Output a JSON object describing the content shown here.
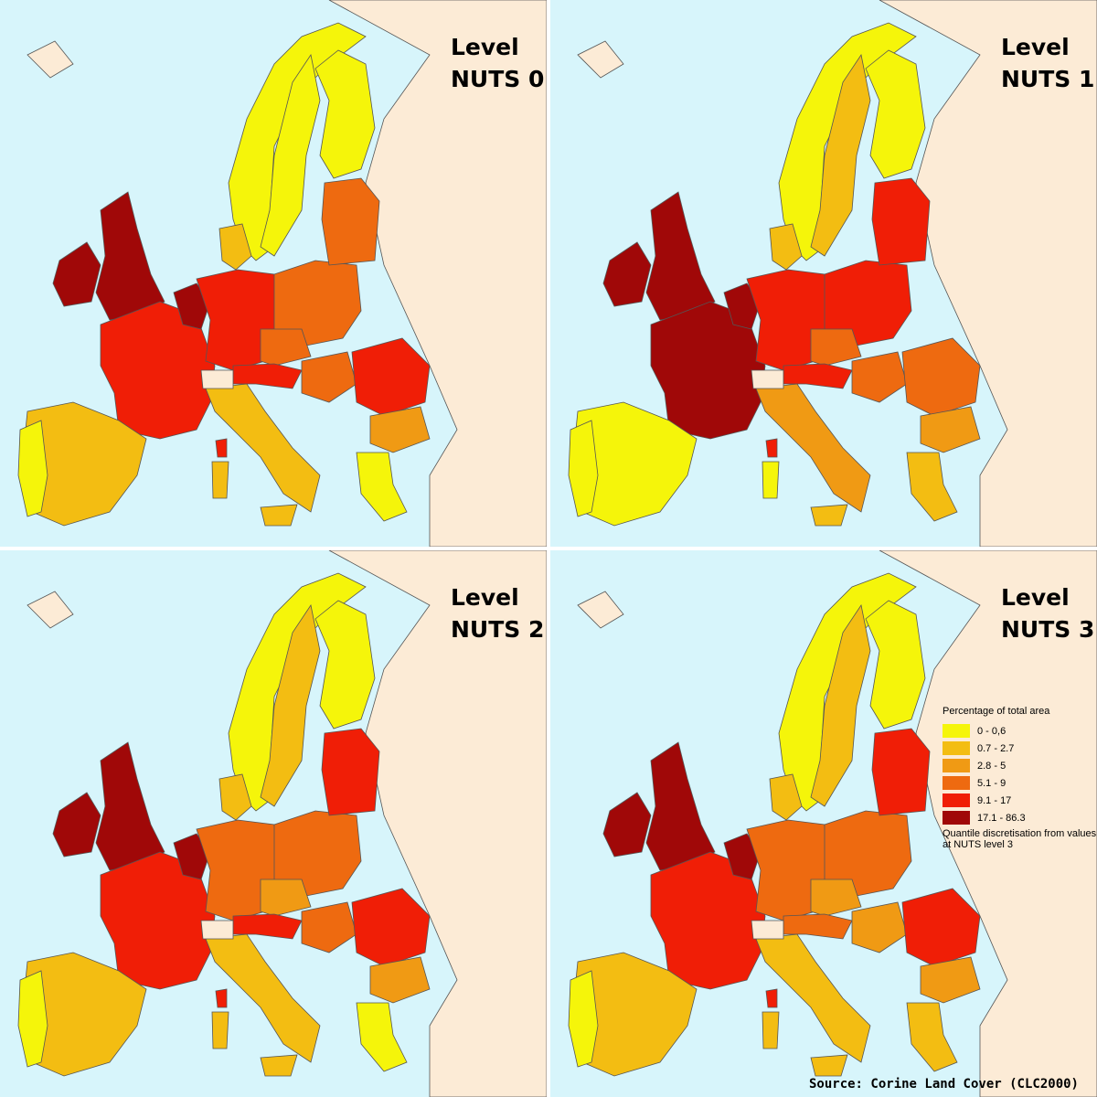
{
  "panels": [
    {
      "title_line1": "Level",
      "title_line2": "NUTS 0"
    },
    {
      "title_line1": "Level",
      "title_line2": "NUTS 1"
    },
    {
      "title_line1": "Level",
      "title_line2": "NUTS 2"
    },
    {
      "title_line1": "Level",
      "title_line2": "NUTS 3"
    }
  ],
  "legend": {
    "title": "Percentage of total area",
    "classes": [
      {
        "label": "0 - 0,6",
        "color": "#f5f50a"
      },
      {
        "label": "0.7 - 2.7",
        "color": "#f3bd12"
      },
      {
        "label": "2.8 - 5",
        "color": "#f09a14"
      },
      {
        "label": "5.1 - 9",
        "color": "#ee6a10"
      },
      {
        "label": "9.1 - 17",
        "color": "#f01e06"
      },
      {
        "label": "17.1 - 86.3",
        "color": "#a00808"
      }
    ],
    "note": "Quantile discretisation from values at NUTS level 3"
  },
  "colors": {
    "sea": "#d7f5fb",
    "non_eu_land": "#fcebd6",
    "border": "#555555"
  },
  "source": "Source: Corine Land Cover (CLC2000)"
}
